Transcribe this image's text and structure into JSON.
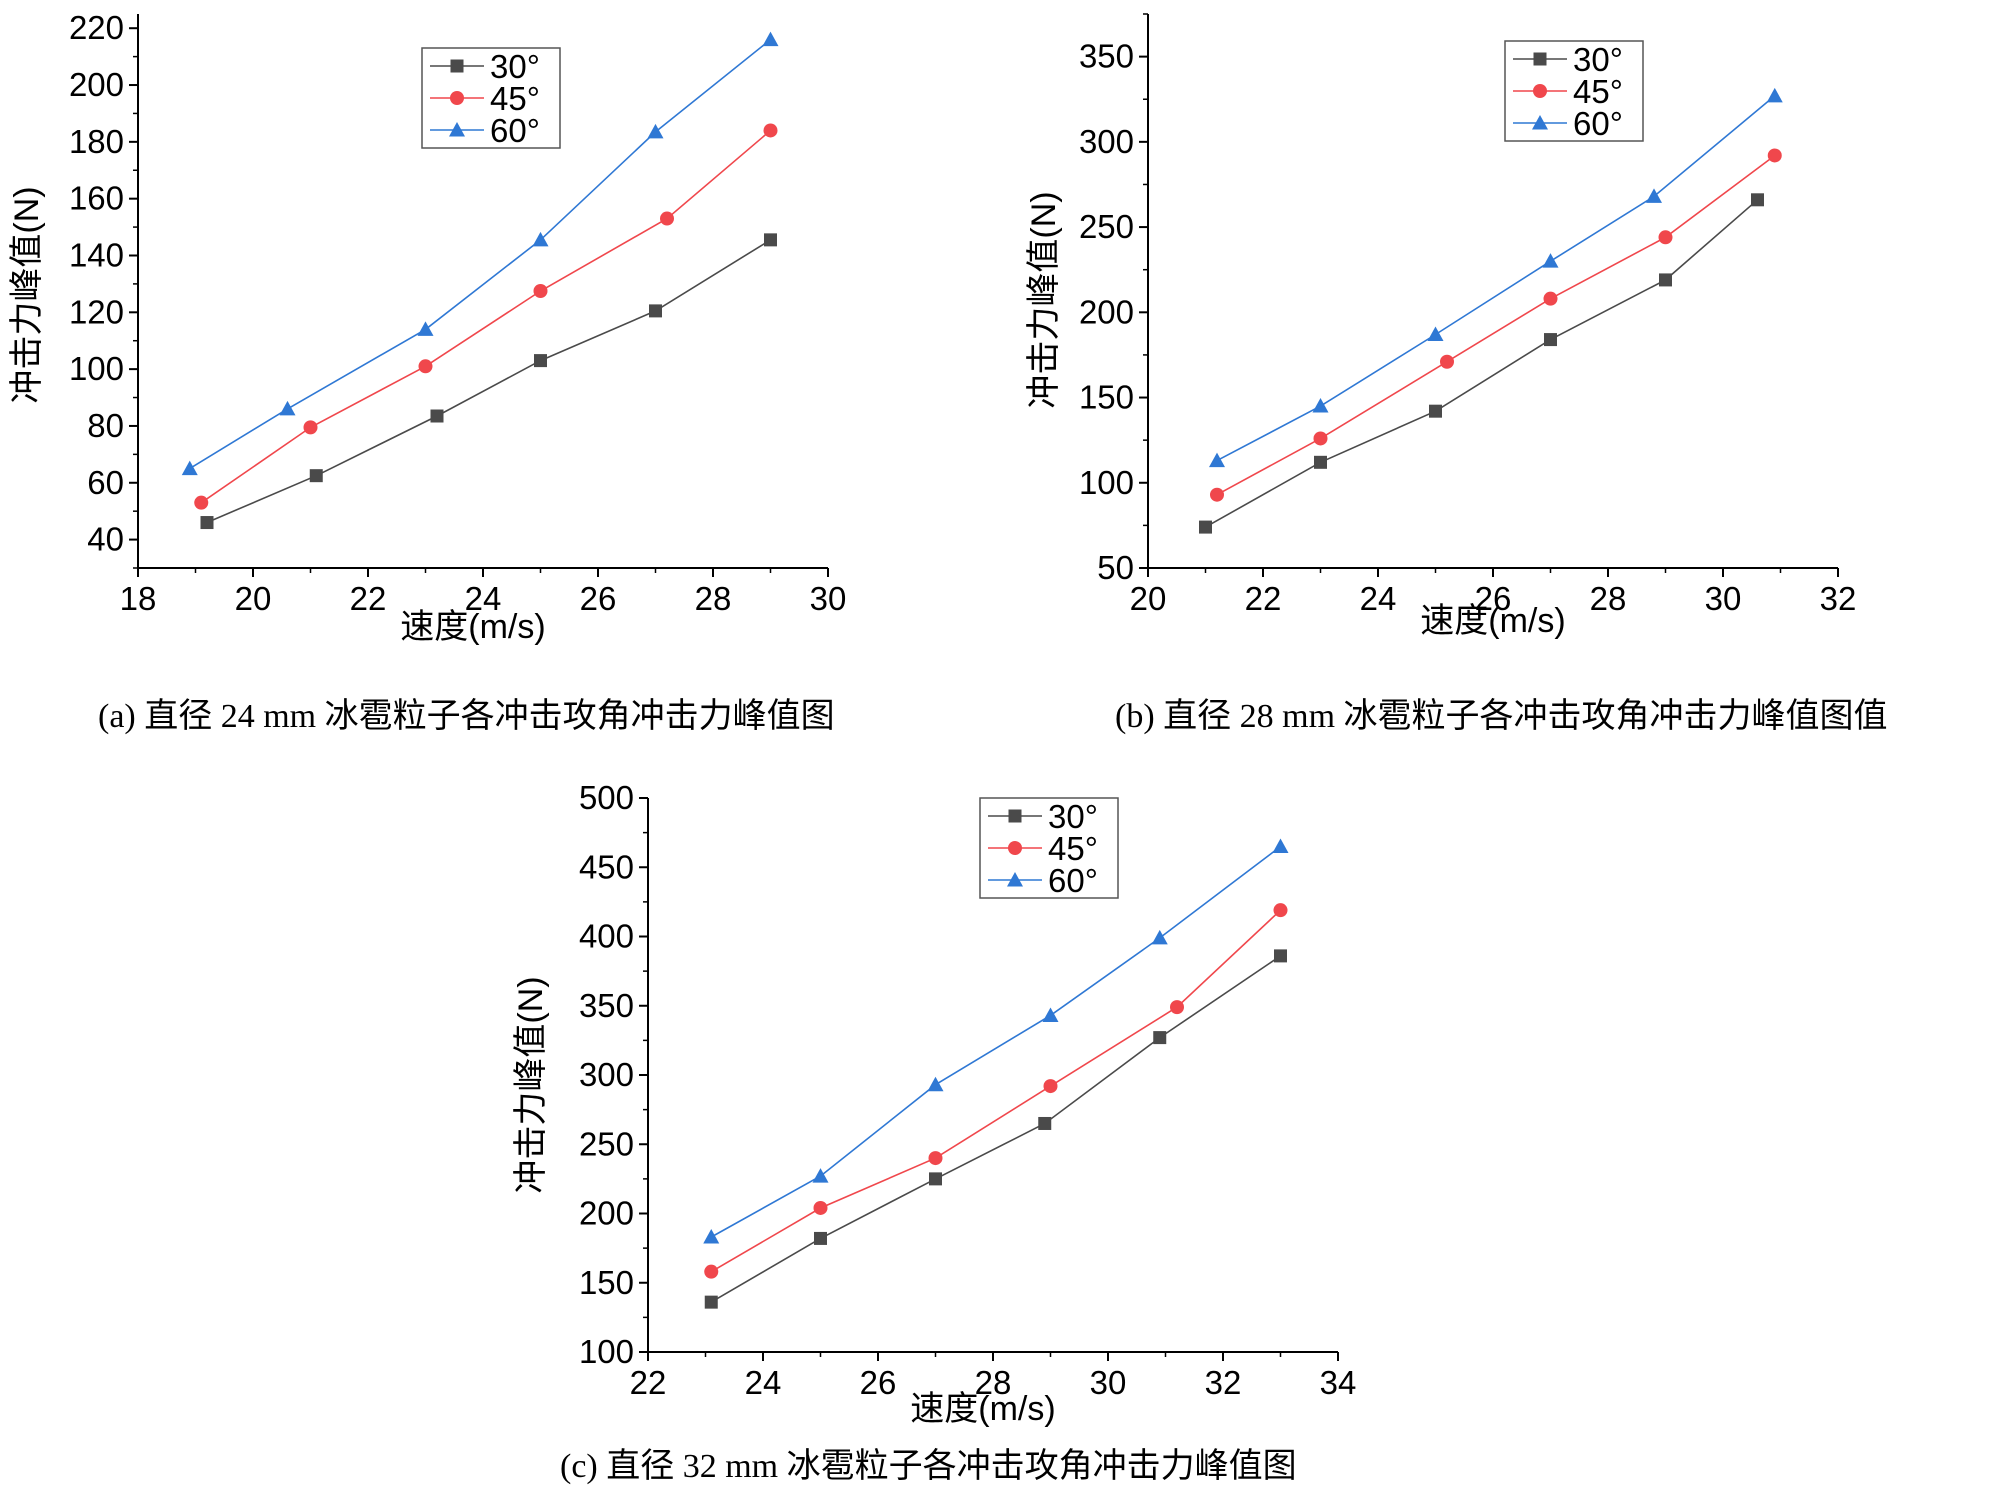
{
  "chart_data": [
    {
      "type": "line",
      "panel": "a",
      "caption": "(a)  直径 24 mm 冰雹粒子各冲击攻角冲击力峰值图",
      "xlabel": "速度(m/s)",
      "ylabel": "冲击力峰值(N)",
      "xlim": [
        18,
        30
      ],
      "ylim": [
        30,
        225
      ],
      "xticks": [
        18,
        20,
        22,
        24,
        26,
        28,
        30
      ],
      "yticks": [
        40,
        60,
        80,
        100,
        120,
        140,
        160,
        180,
        200,
        220
      ],
      "legend_position": "top-center",
      "series": [
        {
          "name": "30°",
          "color": "#4a4a4a",
          "marker": "square",
          "x": [
            19.2,
            21.1,
            23.2,
            25.0,
            27.0,
            29.0
          ],
          "y": [
            46,
            62.5,
            83.5,
            103,
            120.5,
            145.5
          ]
        },
        {
          "name": "45°",
          "color": "#f0474c",
          "marker": "circle",
          "x": [
            19.1,
            21.0,
            23.0,
            25.0,
            27.2,
            29.0
          ],
          "y": [
            53,
            79.5,
            101,
            127.5,
            153,
            184
          ]
        },
        {
          "name": "60°",
          "color": "#2f78d4",
          "marker": "triangle",
          "x": [
            18.9,
            20.6,
            23.0,
            25.0,
            27.0,
            29.0
          ],
          "y": [
            65,
            86,
            114,
            145.5,
            183.5,
            216
          ]
        }
      ]
    },
    {
      "type": "line",
      "panel": "b",
      "caption": "(b)  直径 28 mm 冰雹粒子各冲击攻角冲击力峰值图值",
      "xlabel": "速度(m/s)",
      "ylabel": "冲击力峰值(N)",
      "xlim": [
        20,
        32
      ],
      "ylim": [
        50,
        375
      ],
      "xticks": [
        20,
        22,
        24,
        26,
        28,
        30,
        32
      ],
      "yticks": [
        50,
        100,
        150,
        200,
        250,
        300,
        350
      ],
      "legend_position": "top-left",
      "series": [
        {
          "name": "30°",
          "color": "#4a4a4a",
          "marker": "square",
          "x": [
            21.0,
            23.0,
            25.0,
            27.0,
            29.0,
            30.6
          ],
          "y": [
            74,
            112,
            142,
            184,
            219,
            266
          ]
        },
        {
          "name": "45°",
          "color": "#f0474c",
          "marker": "circle",
          "x": [
            21.2,
            23.0,
            25.2,
            27.0,
            29.0,
            30.9
          ],
          "y": [
            93,
            126,
            171,
            208,
            244,
            292
          ]
        },
        {
          "name": "60°",
          "color": "#2f78d4",
          "marker": "triangle",
          "x": [
            21.2,
            23.0,
            25.0,
            27.0,
            28.8,
            30.9
          ],
          "y": [
            113,
            145,
            187,
            230,
            268,
            327
          ]
        }
      ]
    },
    {
      "type": "line",
      "panel": "c",
      "caption": "(c)  直径 32 mm 冰雹粒子各冲击攻角冲击力峰值图",
      "xlabel": "速度(m/s)",
      "ylabel": "冲击力峰值(N)",
      "xlim": [
        22,
        34
      ],
      "ylim": [
        100,
        500
      ],
      "xticks": [
        22,
        24,
        26,
        28,
        30,
        32,
        34
      ],
      "yticks": [
        100,
        150,
        200,
        250,
        300,
        350,
        400,
        450,
        500
      ],
      "legend_position": "top-center",
      "series": [
        {
          "name": "30°",
          "color": "#4a4a4a",
          "marker": "square",
          "x": [
            23.1,
            25.0,
            27.0,
            28.9,
            30.9,
            33.0
          ],
          "y": [
            136,
            182,
            225,
            265,
            327,
            386
          ]
        },
        {
          "name": "45°",
          "color": "#f0474c",
          "marker": "circle",
          "x": [
            23.1,
            25.0,
            27.0,
            29.0,
            31.2,
            33.0
          ],
          "y": [
            158,
            204,
            240,
            292,
            349,
            419
          ]
        },
        {
          "name": "60°",
          "color": "#2f78d4",
          "marker": "triangle",
          "x": [
            23.1,
            25.0,
            27.0,
            29.0,
            30.9,
            33.0
          ],
          "y": [
            183,
            227,
            293,
            343,
            399,
            465
          ]
        }
      ]
    }
  ]
}
